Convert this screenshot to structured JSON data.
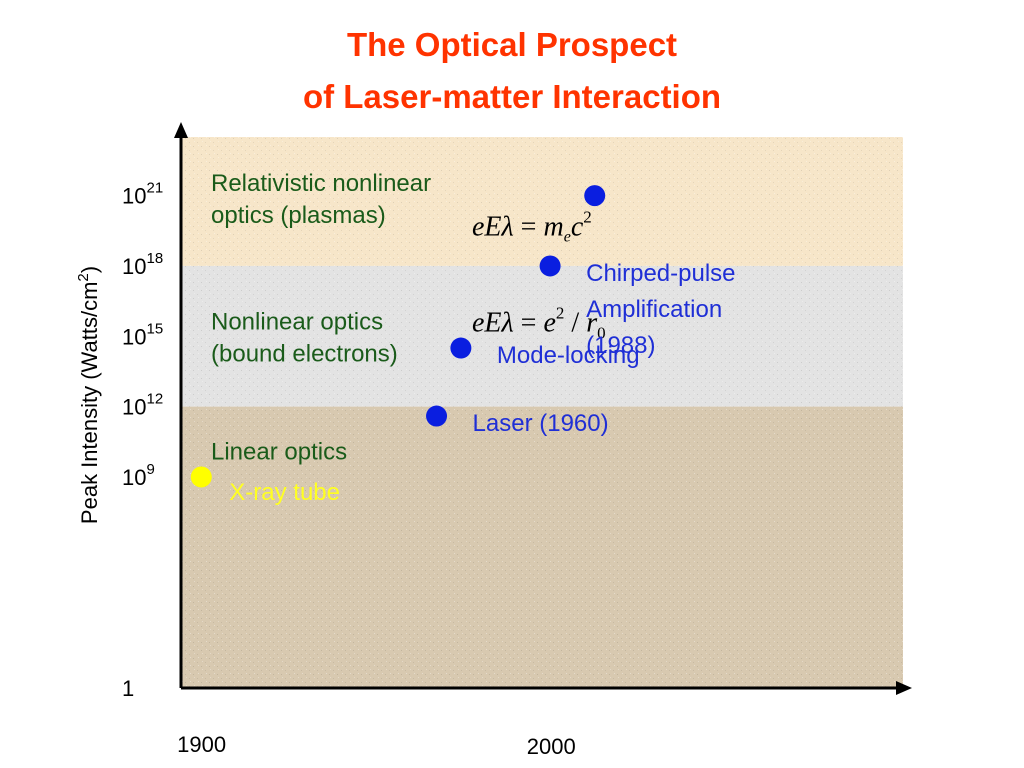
{
  "title": {
    "line1": "The Optical Prospect",
    "line2": "of Laser-matter Interaction"
  },
  "colors": {
    "title": "#ff3300",
    "region_relativistic": "#f7e6c9",
    "region_nonlinear": "#e3e3e3",
    "region_linear": "#d8c9b0",
    "point": "#0a1ee0",
    "xray_point": "#ffff00",
    "region_text": "#1a5b1a",
    "point_text": "#1f2fd6"
  },
  "chart_data": {
    "type": "scatter",
    "title": "The Optical Prospect of Laser-matter Interaction",
    "xlabel": "",
    "ylabel": "Peak Intensity (Watts/cm2)",
    "ylabel_parts": {
      "main": "Peak Intensity (Watts/cm",
      "sup": "2",
      "end": ")"
    },
    "y_scale": "log10",
    "y_ticks": [
      {
        "value": 0,
        "base": "1",
        "exp": ""
      },
      {
        "value": 9,
        "base": "10",
        "exp": "9"
      },
      {
        "value": 12,
        "base": "10",
        "exp": "12"
      },
      {
        "value": 15,
        "base": "10",
        "exp": "15"
      },
      {
        "value": 18,
        "base": "10",
        "exp": "18"
      },
      {
        "value": 21,
        "base": "10",
        "exp": "21"
      }
    ],
    "x_ticks": [
      {
        "value": 1900,
        "label": "1900"
      },
      {
        "value": 2000,
        "label": "2000"
      }
    ],
    "xlim": [
      1897,
      2075
    ],
    "ylim": [
      0,
      23.5
    ],
    "regions": [
      {
        "name": "Relativistic nonlinear optics (plasmas)",
        "from": 18,
        "to": 23.5,
        "color": "#f7e6c9",
        "lines": [
          "Relativistic nonlinear",
          "optics (plasmas)"
        ],
        "label_y": 21.2
      },
      {
        "name": "Nonlinear optics (bound electrons)",
        "from": 12,
        "to": 18,
        "color": "#e3e3e3",
        "lines": [
          "Nonlinear optics",
          "(bound electrons)"
        ],
        "label_y": 15.3
      },
      {
        "name": "Linear optics",
        "from": 0,
        "to": 12,
        "color": "#d8c9b0",
        "lines": [
          "Linear optics"
        ],
        "label_y": 9.75
      }
    ],
    "points": [
      {
        "x": 1902,
        "y": 9,
        "color": "#ffff00",
        "label_lines": [
          "X-ray tube"
        ],
        "label_style": "yellow"
      },
      {
        "x": 1960,
        "y": 11.6,
        "color": "#0a1ee0",
        "label_lines": [
          "Laser (1960)"
        ],
        "label_style": "blue"
      },
      {
        "x": 1966,
        "y": 14.5,
        "color": "#0a1ee0",
        "label_lines": [
          "Mode-locking"
        ],
        "label_style": "blue"
      },
      {
        "x": 1988,
        "y": 18,
        "color": "#0a1ee0",
        "label_lines": [
          "Chirped-pulse",
          "Amplification",
          "(1988)"
        ],
        "label_style": "blue"
      },
      {
        "x": 1999,
        "y": 21,
        "color": "#0a1ee0",
        "label_lines": [],
        "label_style": "blue"
      }
    ],
    "annotations": [
      {
        "text": "eEλ = m_e c^2",
        "near_y": 19.3
      },
      {
        "text": "eEλ = e^2 / r_0",
        "near_y": 15.2
      }
    ]
  }
}
